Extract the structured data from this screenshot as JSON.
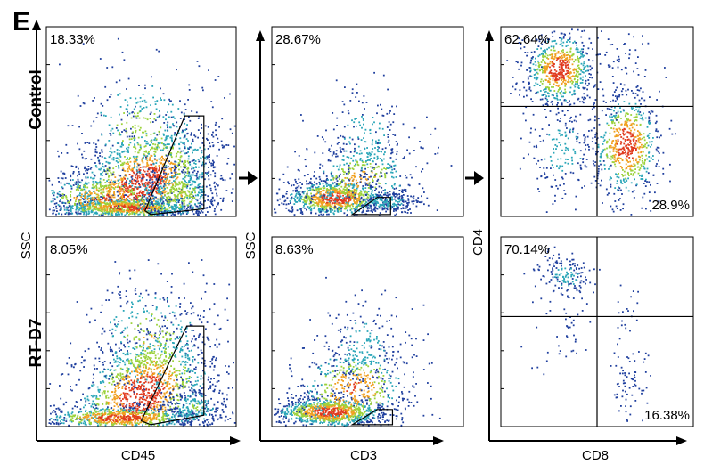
{
  "figure_label": "E",
  "chart_data": [
    {
      "type": "scatter",
      "subtype": "flow-cytometry-density",
      "group": "Control",
      "xlabel": "CD45",
      "ylabel": "SSC",
      "gate": "polygon",
      "percentages": [
        {
          "value": "18.33%",
          "position": "top-left"
        }
      ]
    },
    {
      "type": "scatter",
      "subtype": "flow-cytometry-density",
      "group": "RT-D7",
      "xlabel": "CD45",
      "ylabel": "SSC",
      "gate": "polygon",
      "percentages": [
        {
          "value": "8.05%",
          "position": "top-left"
        }
      ]
    },
    {
      "type": "scatter",
      "subtype": "flow-cytometry-density",
      "group": "Control",
      "xlabel": "CD3",
      "ylabel": "SSC",
      "gate": "rectangle",
      "percentages": [
        {
          "value": "28.67%",
          "position": "top-left"
        }
      ]
    },
    {
      "type": "scatter",
      "subtype": "flow-cytometry-density",
      "group": "RT-D7",
      "xlabel": "CD3",
      "ylabel": "SSC",
      "gate": "rectangle",
      "percentages": [
        {
          "value": "8.63%",
          "position": "top-left"
        }
      ]
    },
    {
      "type": "scatter",
      "subtype": "flow-cytometry-quadrant",
      "group": "Control",
      "xlabel": "CD8",
      "ylabel": "CD4",
      "percentages": [
        {
          "value": "62.64%",
          "position": "top-left"
        },
        {
          "value": "28.9%",
          "position": "bottom-right"
        }
      ]
    },
    {
      "type": "scatter",
      "subtype": "flow-cytometry-quadrant",
      "group": "RT-D7",
      "xlabel": "CD8",
      "ylabel": "CD4",
      "percentages": [
        {
          "value": "70.14%",
          "position": "top-left"
        },
        {
          "value": "16.38%",
          "position": "bottom-right"
        }
      ]
    }
  ],
  "row_labels": [
    "Control",
    "RT-D7"
  ],
  "axes": {
    "col1": {
      "xlabel": "CD45",
      "ylabel": "SSC"
    },
    "col2": {
      "xlabel": "CD3",
      "ylabel": "SSC"
    },
    "col3": {
      "xlabel": "CD8",
      "ylabel": "CD4"
    }
  },
  "colors": {
    "low": "#1f3f9e",
    "mid": "#2aa6b8",
    "high": "#9bd23a",
    "peak": "#e03a1e"
  }
}
